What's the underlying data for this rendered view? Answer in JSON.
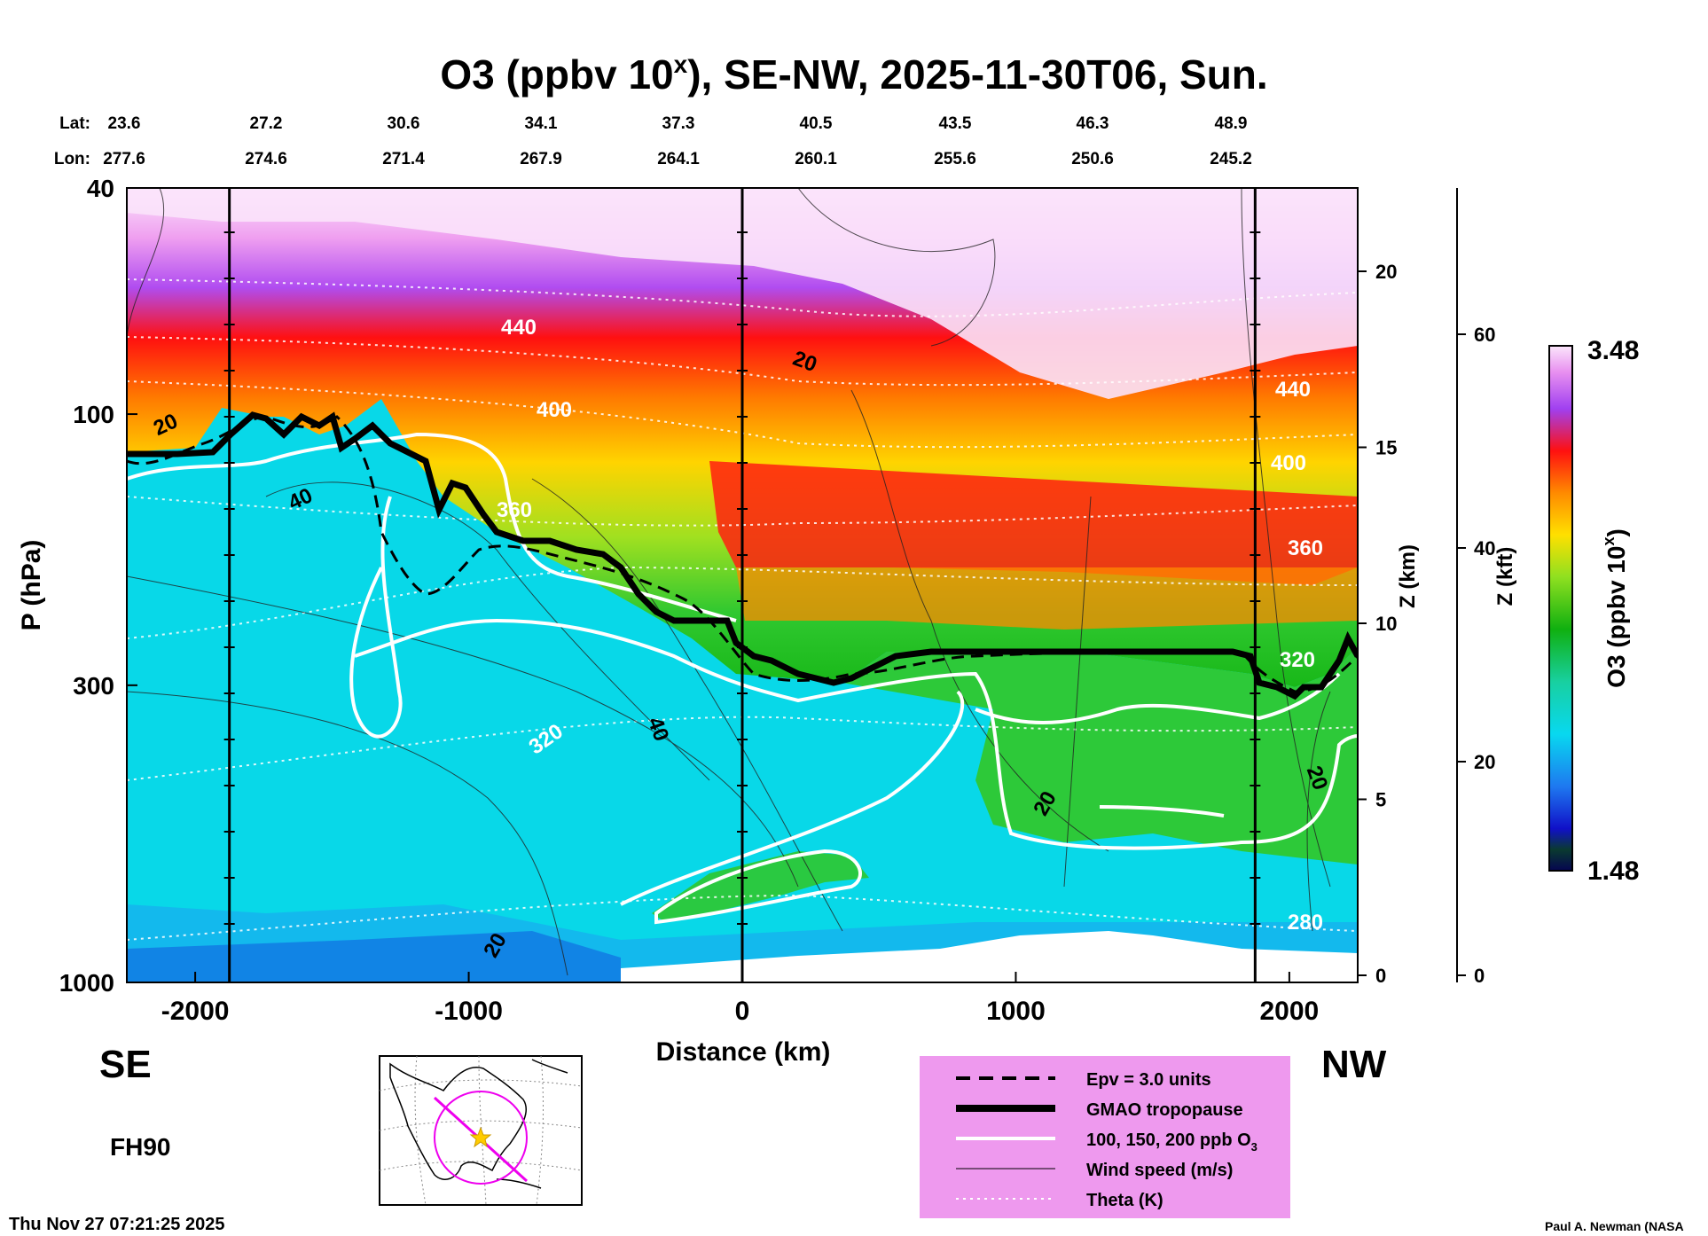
{
  "chart_data": {
    "type": "heatmap",
    "title_main": "O3 (ppbv 10",
    "title_sup": "x",
    "title_rest": "), SE-NW, 2025-11-30T06, Sun.",
    "xlabel": "Distance (km)",
    "ylabel": "P (hPa)",
    "zlabel_km": "Z (km)",
    "zlabel_kft": "Z (kft)",
    "colorbar_label_main": "O3 (ppbv 10",
    "colorbar_label_sup": "x",
    "colorbar_label_rest": ")",
    "colorbar_min": "1.48",
    "colorbar_max": "3.48",
    "xlim": [
      -2250,
      2250
    ],
    "ylim_hpa": [
      40,
      1000
    ],
    "x_ticks": [
      {
        "v": -2000,
        "label": "-2000"
      },
      {
        "v": -1000,
        "label": "-1000"
      },
      {
        "v": 0,
        "label": "0"
      },
      {
        "v": 1000,
        "label": "1000"
      },
      {
        "v": 2000,
        "label": "2000"
      }
    ],
    "p_ticks": [
      {
        "v": 40,
        "label": "40"
      },
      {
        "v": 100,
        "label": "100"
      },
      {
        "v": 300,
        "label": "300"
      },
      {
        "v": 1000,
        "label": "1000"
      }
    ],
    "zkm_ticks": [
      {
        "v": 0,
        "label": "0"
      },
      {
        "v": 5,
        "label": "5"
      },
      {
        "v": 10,
        "label": "10"
      },
      {
        "v": 15,
        "label": "15"
      },
      {
        "v": 20,
        "label": "20"
      }
    ],
    "zkft_ticks": [
      {
        "v": 0,
        "label": "0"
      },
      {
        "v": 20,
        "label": "20"
      },
      {
        "v": 40,
        "label": "40"
      },
      {
        "v": 60,
        "label": "60"
      }
    ],
    "lat_label": "Lat:",
    "lon_label": "Lon:",
    "latlon": [
      {
        "lat": "23.6",
        "lon": "277.6"
      },
      {
        "lat": "27.2",
        "lon": "274.6"
      },
      {
        "lat": "30.6",
        "lon": "271.4"
      },
      {
        "lat": "34.1",
        "lon": "267.9"
      },
      {
        "lat": "37.3",
        "lon": "264.1"
      },
      {
        "lat": "40.5",
        "lon": "260.1"
      },
      {
        "lat": "43.5",
        "lon": "255.6"
      },
      {
        "lat": "46.3",
        "lon": "250.6"
      },
      {
        "lat": "48.9",
        "lon": "245.2"
      }
    ],
    "vertical_markers_km": [
      -1875,
      0,
      1875
    ],
    "contour_labels": [
      {
        "text": "440",
        "color": "white"
      },
      {
        "text": "400",
        "color": "white"
      },
      {
        "text": "360",
        "color": "white"
      },
      {
        "text": "320",
        "color": "white"
      },
      {
        "text": "280",
        "color": "white"
      },
      {
        "text": "440",
        "color": "white"
      },
      {
        "text": "400",
        "color": "white"
      },
      {
        "text": "360",
        "color": "white"
      },
      {
        "text": "320",
        "color": "white"
      },
      {
        "text": "20",
        "color": "black"
      },
      {
        "text": "40",
        "color": "black"
      },
      {
        "text": "40",
        "color": "black"
      },
      {
        "text": "20",
        "color": "black"
      },
      {
        "text": "20",
        "color": "black"
      },
      {
        "text": "20",
        "color": "black"
      },
      {
        "text": "20",
        "color": "black"
      }
    ],
    "legend": [
      {
        "style": "dashed",
        "label": "Epv = 3.0 units"
      },
      {
        "style": "thick",
        "label": "GMAO tropopause"
      },
      {
        "style": "white",
        "label": "100, 150, 200 ppb O",
        "sub": "3"
      },
      {
        "style": "thin",
        "label": "Wind speed (m/s)"
      },
      {
        "style": "dotted",
        "label": "Theta (K)"
      }
    ],
    "direction_left": "SE",
    "direction_right": "NW",
    "forecast_hour": "FH90",
    "timestamp": "Thu Nov 27 07:21:25 2025",
    "credit": "Paul A. Newman (NASA"
  },
  "colors": {
    "legend_bg": "#ee99ee",
    "map_track": "#ee00ee",
    "star": "#ffcc00"
  }
}
